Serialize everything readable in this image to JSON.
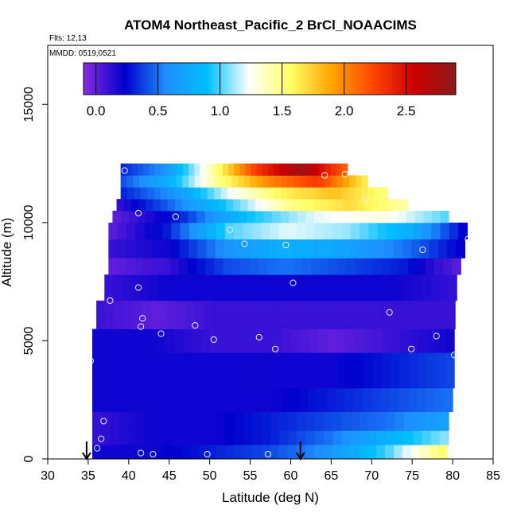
{
  "chart_data": {
    "type": "heatmap",
    "title": "ATOM4 Northeast_Pacific_2 BrCl_NOAACIMS",
    "flights_label": "Flts: 12,13",
    "date_label": "MMDD: 0519,0521",
    "xlabel": "Latitude (deg N)",
    "ylabel": "Altitude (m)",
    "xlim": [
      30,
      85
    ],
    "ylim": [
      0,
      17500
    ],
    "x_ticks": [
      "30",
      "35",
      "40",
      "45",
      "50",
      "55",
      "60",
      "65",
      "70",
      "75",
      "80",
      "85"
    ],
    "y_ticks": [
      "0",
      "5000",
      "10000",
      "15000"
    ],
    "colorbar": {
      "range": [
        -0.1,
        2.9
      ],
      "ticks": [
        "0.0",
        "0.5",
        "1.0",
        "1.5",
        "2.0",
        "2.5"
      ],
      "tick_values": [
        0.0,
        0.5,
        1.0,
        1.5,
        2.0,
        2.5
      ],
      "colors": [
        "#8a2be2",
        "#0000cd",
        "#1e90ff",
        "#00bfff",
        "#ffffff",
        "#ffff66",
        "#ffa500",
        "#ff4500",
        "#cc0000",
        "#8b1a1a"
      ]
    },
    "field_layers": [
      {
        "alt_bottom": 0,
        "alt_top": 600,
        "lat_left": 35.5,
        "lat_right": 79.3,
        "values": [
          0.2,
          0.2,
          0.3,
          0.4,
          0.6,
          1.0,
          1.6
        ]
      },
      {
        "alt_bottom": 600,
        "alt_top": 1200,
        "lat_left": 35.5,
        "lat_right": 79.5,
        "values": [
          0.1,
          0.2,
          0.2,
          0.3,
          0.5,
          0.8,
          1.1
        ]
      },
      {
        "alt_bottom": 1200,
        "alt_top": 2000,
        "lat_left": 35.5,
        "lat_right": 79.5,
        "values": [
          0.1,
          0.2,
          0.2,
          0.3,
          0.4,
          0.5,
          0.7
        ]
      },
      {
        "alt_bottom": 2000,
        "alt_top": 3000,
        "lat_left": 35.5,
        "lat_right": 80.0,
        "values": [
          0.2,
          0.2,
          0.2,
          0.2,
          0.3,
          0.4,
          0.5
        ]
      },
      {
        "alt_bottom": 3000,
        "alt_top": 4500,
        "lat_left": 35.5,
        "lat_right": 80.2,
        "values": [
          0.2,
          0.2,
          0.2,
          0.2,
          0.2,
          0.3,
          0.4
        ]
      },
      {
        "alt_bottom": 4500,
        "alt_top": 5500,
        "lat_left": 35.5,
        "lat_right": 80.2,
        "values": [
          0.2,
          0.2,
          0.1,
          0.1,
          0.0,
          0.1,
          0.2
        ]
      },
      {
        "alt_bottom": 5500,
        "alt_top": 6700,
        "lat_left": 36.0,
        "lat_right": 80.3,
        "values": [
          0.1,
          0.0,
          0.1,
          0.1,
          0.1,
          0.1,
          0.1
        ]
      },
      {
        "alt_bottom": 6700,
        "alt_top": 7800,
        "lat_left": 37.0,
        "lat_right": 80.5,
        "values": [
          0.1,
          0.2,
          0.2,
          0.2,
          0.2,
          0.2,
          0.1
        ]
      },
      {
        "alt_bottom": 7800,
        "alt_top": 8500,
        "lat_left": 37.5,
        "lat_right": 81.0,
        "values": [
          0.0,
          0.1,
          0.4,
          0.5,
          0.4,
          0.3,
          0.0
        ]
      },
      {
        "alt_bottom": 8500,
        "alt_top": 9300,
        "lat_left": 37.5,
        "lat_right": 81.5,
        "values": [
          0.1,
          0.2,
          0.6,
          0.8,
          0.7,
          0.5,
          0.2
        ]
      },
      {
        "alt_bottom": 9300,
        "alt_top": 10000,
        "lat_left": 37.5,
        "lat_right": 81.8,
        "values": [
          0.0,
          0.3,
          1.0,
          1.2,
          1.1,
          0.8,
          0.2
        ]
      },
      {
        "alt_bottom": 10000,
        "alt_top": 10500,
        "lat_left": 38.0,
        "lat_right": 79.5,
        "values": [
          0.0,
          0.3,
          0.9,
          1.2,
          1.3,
          1.0
        ]
      },
      {
        "alt_bottom": 10500,
        "alt_top": 11000,
        "lat_left": 38.5,
        "lat_right": 74.5,
        "values": [
          0.1,
          0.5,
          1.0,
          1.5,
          1.7,
          1.4
        ]
      },
      {
        "alt_bottom": 11000,
        "alt_top": 11500,
        "lat_left": 39.0,
        "lat_right": 72.0,
        "values": [
          0.3,
          0.6,
          1.2,
          1.6,
          1.8,
          1.5
        ]
      },
      {
        "alt_bottom": 11500,
        "alt_top": 12000,
        "lat_left": 39.0,
        "lat_right": 69.5,
        "values": [
          0.4,
          0.8,
          1.5,
          2.0,
          2.3,
          1.6
        ]
      },
      {
        "alt_bottom": 12000,
        "alt_top": 12500,
        "lat_left": 39.0,
        "lat_right": 67.0,
        "values": [
          0.3,
          0.6,
          1.4,
          2.3,
          2.8,
          2.1
        ]
      }
    ],
    "sample_points": [
      {
        "lat": 39.5,
        "alt": 12200
      },
      {
        "lat": 64.2,
        "alt": 12000
      },
      {
        "lat": 66.7,
        "alt": 12050
      },
      {
        "lat": 69.2,
        "alt": 11000
      },
      {
        "lat": 41.2,
        "alt": 10400
      },
      {
        "lat": 45.8,
        "alt": 10250
      },
      {
        "lat": 52.5,
        "alt": 9700
      },
      {
        "lat": 54.3,
        "alt": 9100
      },
      {
        "lat": 59.4,
        "alt": 9050
      },
      {
        "lat": 76.3,
        "alt": 8850
      },
      {
        "lat": 81.9,
        "alt": 9300
      },
      {
        "lat": 41.2,
        "alt": 7250
      },
      {
        "lat": 60.3,
        "alt": 7450
      },
      {
        "lat": 37.7,
        "alt": 6700
      },
      {
        "lat": 72.2,
        "alt": 6200
      },
      {
        "lat": 41.7,
        "alt": 5950
      },
      {
        "lat": 41.5,
        "alt": 5600
      },
      {
        "lat": 48.2,
        "alt": 5650
      },
      {
        "lat": 44.0,
        "alt": 5300
      },
      {
        "lat": 50.5,
        "alt": 5050
      },
      {
        "lat": 56.1,
        "alt": 5150
      },
      {
        "lat": 78.0,
        "alt": 5200
      },
      {
        "lat": 58.1,
        "alt": 4650
      },
      {
        "lat": 74.9,
        "alt": 4650
      },
      {
        "lat": 80.2,
        "alt": 4400
      },
      {
        "lat": 35.3,
        "alt": 4150
      },
      {
        "lat": 36.9,
        "alt": 1600
      },
      {
        "lat": 36.6,
        "alt": 850
      },
      {
        "lat": 36.1,
        "alt": 450
      },
      {
        "lat": 41.5,
        "alt": 250
      },
      {
        "lat": 43.0,
        "alt": 200
      },
      {
        "lat": 49.7,
        "alt": 200
      },
      {
        "lat": 57.2,
        "alt": 200
      },
      {
        "lat": 74.0,
        "alt": 200
      },
      {
        "lat": 79.5,
        "alt": 250
      }
    ],
    "arrows": [
      {
        "lat": 34.8
      },
      {
        "lat": 61.2
      }
    ],
    "grid": false
  }
}
